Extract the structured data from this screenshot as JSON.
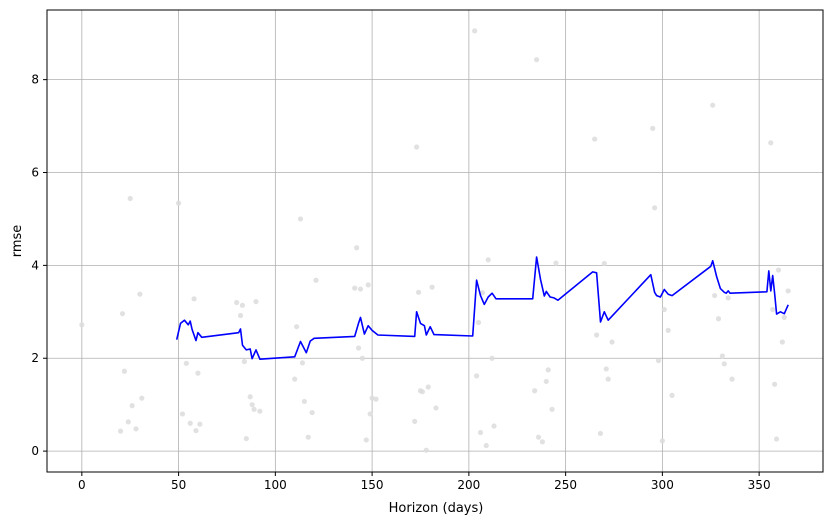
{
  "chart_data": {
    "type": "line",
    "title": "",
    "xlabel": "Horizon (days)",
    "ylabel": "rmse",
    "xlim": [
      -18,
      383
    ],
    "ylim": [
      -0.45,
      9.5
    ],
    "xticks": [
      0,
      50,
      100,
      150,
      200,
      250,
      300,
      350
    ],
    "yticks": [
      0,
      2,
      4,
      6,
      8
    ],
    "grid": true,
    "colors": {
      "line": "#0000ff",
      "points": "#dcdcdc",
      "grid": "#b0b0b0"
    },
    "series": [
      {
        "x": [
          49,
          51,
          53,
          55,
          56,
          57,
          59,
          60,
          62,
          81,
          82,
          83,
          85,
          87,
          88,
          90,
          92,
          110,
          113,
          116,
          118,
          120,
          141,
          143,
          144,
          146,
          148,
          150,
          153,
          172,
          173,
          175,
          177,
          178,
          180,
          182,
          202,
          204,
          206,
          208,
          210,
          212,
          214,
          233,
          235,
          237,
          239,
          240,
          242,
          244,
          246,
          264,
          266,
          268,
          270,
          272,
          294,
          296,
          297,
          299,
          301,
          303,
          305,
          325,
          326,
          328,
          330,
          332,
          333,
          334,
          335,
          354,
          355,
          356,
          357,
          358,
          359,
          361,
          363,
          365
        ],
        "y": [
          2.4,
          2.75,
          2.82,
          2.72,
          2.8,
          2.62,
          2.38,
          2.55,
          2.45,
          2.55,
          2.63,
          2.28,
          2.18,
          2.2,
          1.99,
          2.18,
          1.98,
          2.03,
          2.36,
          2.12,
          2.37,
          2.43,
          2.47,
          2.76,
          2.88,
          2.52,
          2.7,
          2.6,
          2.5,
          2.47,
          3.0,
          2.75,
          2.7,
          2.5,
          2.68,
          2.51,
          2.48,
          3.68,
          3.35,
          3.16,
          3.32,
          3.4,
          3.28,
          3.28,
          4.18,
          3.7,
          3.34,
          3.44,
          3.32,
          3.3,
          3.25,
          3.86,
          3.84,
          2.78,
          3.0,
          2.82,
          3.8,
          3.42,
          3.35,
          3.32,
          3.48,
          3.38,
          3.35,
          3.98,
          4.1,
          3.76,
          3.5,
          3.42,
          3.4,
          3.45,
          3.4,
          3.43,
          3.88,
          3.45,
          3.78,
          3.4,
          2.95,
          3.0,
          2.96,
          3.15
        ]
      }
    ],
    "scatter": {
      "x": [
        0,
        20,
        21,
        22,
        24,
        25,
        26,
        28,
        30,
        31,
        50,
        52,
        54,
        56,
        58,
        59,
        60,
        61,
        80,
        82,
        83,
        84,
        85,
        87,
        88,
        89,
        90,
        92,
        110,
        111,
        113,
        114,
        115,
        117,
        119,
        121,
        141,
        142,
        143,
        144,
        145,
        147,
        148,
        149,
        150,
        152,
        172,
        173,
        174,
        175,
        176,
        178,
        179,
        181,
        183,
        203,
        204,
        205,
        206,
        207,
        209,
        210,
        212,
        213,
        234,
        235,
        236,
        238,
        240,
        241,
        243,
        245,
        265,
        266,
        268,
        270,
        271,
        272,
        274,
        295,
        296,
        298,
        300,
        301,
        303,
        305,
        326,
        327,
        329,
        331,
        332,
        334,
        336,
        356,
        357,
        358,
        359,
        360,
        362,
        363,
        365
      ],
      "y": [
        2.72,
        0.43,
        2.96,
        1.72,
        0.63,
        5.44,
        0.98,
        0.48,
        3.38,
        1.14,
        5.34,
        0.8,
        1.89,
        0.6,
        3.28,
        0.44,
        1.68,
        0.58,
        3.2,
        2.92,
        3.14,
        1.93,
        0.27,
        1.17,
        1.0,
        0.9,
        3.22,
        0.86,
        1.55,
        2.68,
        5.0,
        1.9,
        1.07,
        0.3,
        0.83,
        3.68,
        3.51,
        4.38,
        2.22,
        3.49,
        2.0,
        0.24,
        3.58,
        0.8,
        1.14,
        1.12,
        0.64,
        6.55,
        3.42,
        1.3,
        1.28,
        0.02,
        1.38,
        3.53,
        0.93,
        9.05,
        1.62,
        2.77,
        0.4,
        3.41,
        0.12,
        4.12,
        2.0,
        0.54,
        1.3,
        8.43,
        0.3,
        0.2,
        1.5,
        1.75,
        0.9,
        4.05,
        6.72,
        2.5,
        0.38,
        4.04,
        1.77,
        1.55,
        2.35,
        6.95,
        5.24,
        1.95,
        0.22,
        3.05,
        2.6,
        1.2,
        7.45,
        3.35,
        2.85,
        2.05,
        1.88,
        3.3,
        1.55,
        6.64,
        3.05,
        1.44,
        0.26,
        3.9,
        2.35,
        2.88,
        3.45
      ]
    }
  }
}
